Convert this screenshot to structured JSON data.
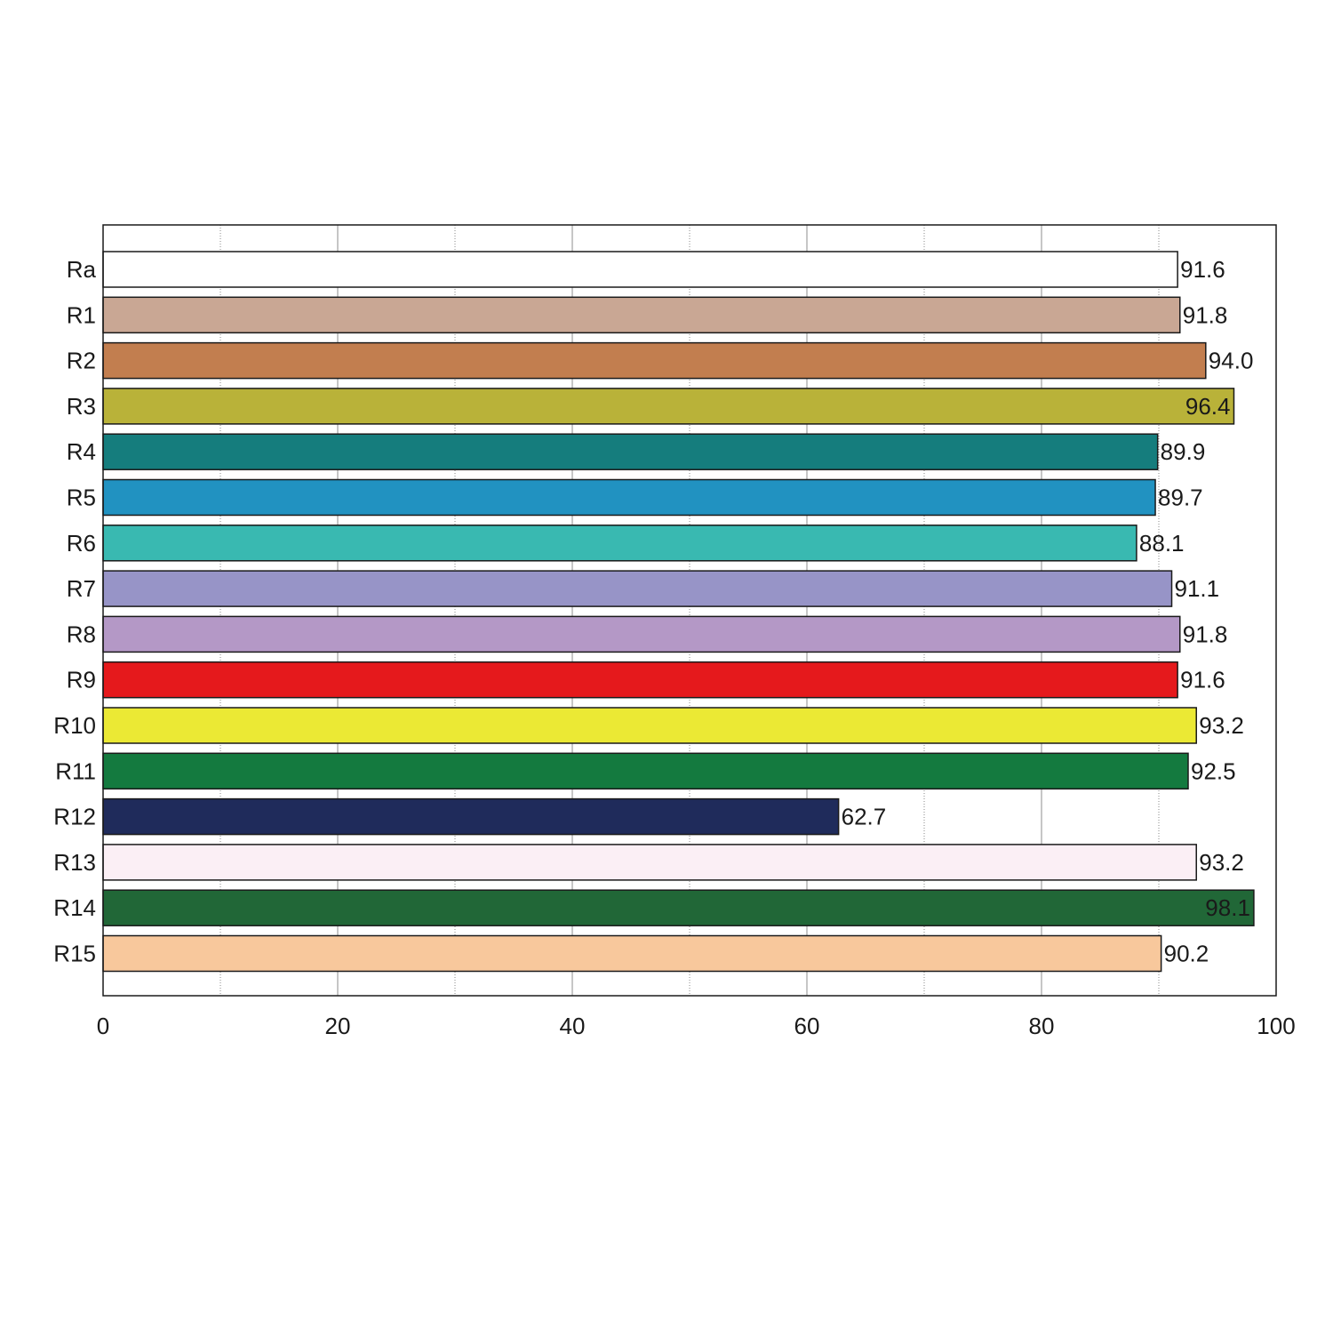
{
  "chart_data": {
    "type": "bar",
    "orientation": "horizontal",
    "title": "",
    "xlabel": "",
    "ylabel": "",
    "xlim": [
      0,
      100
    ],
    "x_ticks": [
      0,
      20,
      40,
      60,
      80,
      100
    ],
    "minor_grid_ticks": [
      10,
      30,
      50,
      70,
      90
    ],
    "grid": true,
    "categories": [
      "Ra",
      "R1",
      "R2",
      "R3",
      "R4",
      "R5",
      "R6",
      "R7",
      "R8",
      "R9",
      "R10",
      "R11",
      "R12",
      "R13",
      "R14",
      "R15"
    ],
    "values": [
      91.6,
      91.8,
      94.0,
      96.4,
      89.9,
      89.7,
      88.1,
      91.1,
      91.8,
      91.6,
      93.2,
      92.5,
      62.7,
      93.2,
      98.1,
      90.2
    ],
    "value_labels": [
      "91.6",
      "91.8",
      "94.0",
      "96.4",
      "89.9",
      "89.7",
      "88.1",
      "91.1",
      "91.8",
      "91.6",
      "93.2",
      "92.5",
      "62.7",
      "93.2",
      "98.1",
      "90.2"
    ],
    "bar_colors": [
      "#ffffff",
      "#c9a794",
      "#c27e4f",
      "#b9b239",
      "#157d7d",
      "#2192c1",
      "#39b9b1",
      "#9794c7",
      "#b498c6",
      "#e5191c",
      "#ebe934",
      "#147a3f",
      "#1f2b5b",
      "#fbeff5",
      "#216737",
      "#f8c89c"
    ]
  }
}
